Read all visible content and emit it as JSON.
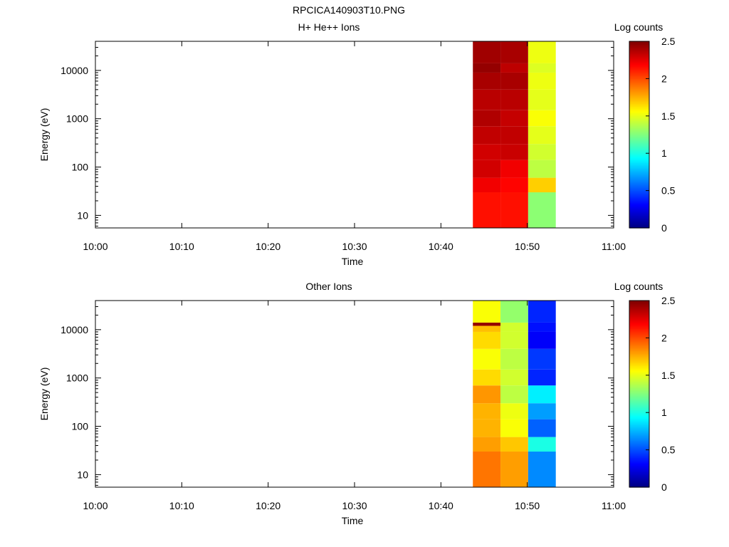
{
  "title": "RPCICA140903T10.PNG",
  "colorbar_ticks": [
    "0",
    "0.5",
    "1",
    "1.5",
    "2",
    "2.5"
  ],
  "chart_data": [
    {
      "type": "heatmap",
      "title": "H+ He++ Ions",
      "xlabel": "Time",
      "ylabel": "Energy (eV)",
      "colorbar_label": "Log counts",
      "x_ticks": [
        "10:00",
        "10:10",
        "10:20",
        "10:30",
        "10:40",
        "10:50",
        "11:00"
      ],
      "y_ticks": [
        "10",
        "100",
        "1000",
        "10000"
      ],
      "y_scale": "log",
      "ylim": [
        5.5,
        40000
      ],
      "xlim": [
        "10:00",
        "11:00"
      ],
      "clim": [
        0,
        2.5
      ],
      "columns": [
        {
          "t_start": "10:43.7",
          "t_end": "10:46.9",
          "levels": [
            [
              5.5,
              2.15
            ],
            [
              30,
              2.22
            ],
            [
              60,
              2.3
            ],
            [
              140,
              2.3
            ],
            [
              300,
              2.34
            ],
            [
              700,
              2.38
            ],
            [
              1500,
              2.36
            ],
            [
              4000,
              2.4
            ],
            [
              9000,
              2.45
            ],
            [
              14000,
              2.42
            ],
            [
              40000,
              2.4
            ]
          ]
        },
        {
          "t_start": "10:46.9",
          "t_end": "10:50.1",
          "levels": [
            [
              5.5,
              2.15
            ],
            [
              30,
              2.18
            ],
            [
              60,
              2.22
            ],
            [
              140,
              2.32
            ],
            [
              300,
              2.34
            ],
            [
              700,
              2.33
            ],
            [
              1500,
              2.36
            ],
            [
              4000,
              2.4
            ],
            [
              9000,
              2.35
            ],
            [
              14000,
              2.4
            ],
            [
              40000,
              2.4
            ]
          ]
        },
        {
          "t_start": "10:50.1",
          "t_end": "10:53.3",
          "levels": [
            [
              5.5,
              1.28
            ],
            [
              30,
              1.68
            ],
            [
              60,
              1.4
            ],
            [
              140,
              1.45
            ],
            [
              300,
              1.5
            ],
            [
              700,
              1.55
            ],
            [
              1500,
              1.5
            ],
            [
              4000,
              1.52
            ],
            [
              9000,
              1.48
            ],
            [
              14000,
              1.52
            ],
            [
              40000,
              1.62
            ]
          ]
        }
      ]
    },
    {
      "type": "heatmap",
      "title": "Other Ions",
      "xlabel": "Time",
      "ylabel": "Energy (eV)",
      "colorbar_label": "Log counts",
      "x_ticks": [
        "10:00",
        "10:10",
        "10:20",
        "10:30",
        "10:40",
        "10:50",
        "11:00"
      ],
      "y_ticks": [
        "10",
        "100",
        "1000",
        "10000"
      ],
      "y_scale": "log",
      "ylim": [
        5.5,
        40000
      ],
      "xlim": [
        "10:00",
        "11:00"
      ],
      "clim": [
        0,
        2.5
      ],
      "columns": [
        {
          "t_start": "10:43.7",
          "t_end": "10:46.9",
          "levels": [
            [
              5.5,
              1.9
            ],
            [
              30,
              1.8
            ],
            [
              60,
              1.75
            ],
            [
              140,
              1.75
            ],
            [
              300,
              1.82
            ],
            [
              700,
              1.65
            ],
            [
              1500,
              1.55
            ],
            [
              4000,
              1.65
            ],
            [
              9000,
              1.72
            ],
            [
              12000,
              2.45
            ],
            [
              14000,
              1.55
            ],
            [
              40000,
              1.5
            ]
          ]
        },
        {
          "t_start": "10:46.9",
          "t_end": "10:50.1",
          "levels": [
            [
              5.5,
              1.8
            ],
            [
              30,
              1.7
            ],
            [
              60,
              1.55
            ],
            [
              140,
              1.52
            ],
            [
              300,
              1.4
            ],
            [
              700,
              1.45
            ],
            [
              1500,
              1.4
            ],
            [
              4000,
              1.45
            ],
            [
              9000,
              1.45
            ],
            [
              14000,
              1.3
            ],
            [
              40000,
              1.4
            ]
          ]
        },
        {
          "t_start": "10:50.1",
          "t_end": "10:53.3",
          "levels": [
            [
              5.5,
              0.65
            ],
            [
              30,
              1.0
            ],
            [
              60,
              0.55
            ],
            [
              140,
              0.7
            ],
            [
              300,
              0.9
            ],
            [
              700,
              0.4
            ],
            [
              1500,
              0.45
            ],
            [
              4000,
              0.3
            ],
            [
              9000,
              0.35
            ],
            [
              14000,
              0.4
            ],
            [
              40000,
              0.3
            ]
          ]
        }
      ]
    }
  ]
}
